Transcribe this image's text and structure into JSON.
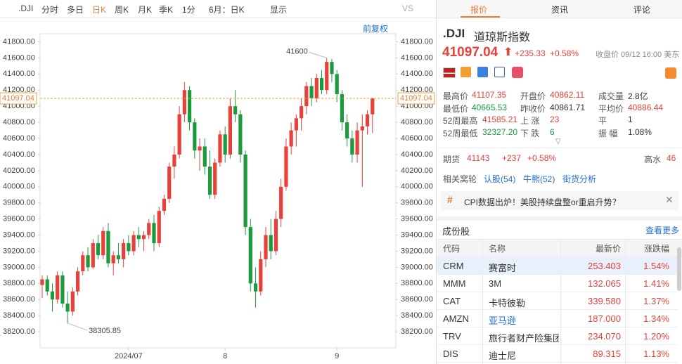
{
  "toolbar": {
    "symbol": ".DJI",
    "items": [
      "分时",
      "多日",
      "日K",
      "周K",
      "月K",
      "季K",
      "1分",
      "6月：日K",
      "显示",
      "VS"
    ],
    "adjust": "前复权"
  },
  "chart_data": {
    "type": "candlestick",
    "categories": [
      null,
      null,
      null,
      null,
      null,
      null,
      null,
      null,
      null,
      null,
      null,
      null,
      null,
      null,
      null,
      null,
      null,
      "2024/07",
      null,
      null,
      null,
      null,
      null,
      null,
      null,
      null,
      null,
      null,
      null,
      null,
      null,
      null,
      null,
      null,
      null,
      null,
      "8",
      null,
      null,
      null,
      null,
      null,
      null,
      null,
      null,
      null,
      null,
      null,
      null,
      null,
      null,
      null,
      null,
      null,
      null,
      null,
      null,
      null,
      "9",
      null,
      null,
      null,
      null,
      null,
      null,
      null,
      null
    ],
    "series": [
      {
        "open": [
          38780,
          38850,
          38700,
          38600,
          38900,
          38550,
          38450,
          38700,
          38950,
          39150,
          39000,
          39300,
          39150,
          39450,
          39050,
          39150,
          39100,
          39300,
          39200,
          39400,
          39350,
          39400,
          39550,
          39300,
          39700,
          39850,
          40250,
          40400,
          40900,
          41200,
          40800,
          40450,
          40500,
          40250,
          39900,
          40300,
          40650,
          40400,
          41000,
          40900,
          40400,
          39500,
          38800,
          38700,
          39100,
          39400,
          39200,
          39600,
          40000,
          40500,
          40700,
          40850,
          41000,
          41250,
          41100,
          41350,
          41200,
          41550,
          41400,
          41150,
          40800,
          40600,
          40400,
          40700,
          40750,
          40900
        ],
        "high": [
          38900,
          38900,
          38800,
          38950,
          38950,
          38700,
          38750,
          39000,
          39200,
          39250,
          39350,
          39400,
          39500,
          39550,
          39200,
          39300,
          39350,
          39400,
          39450,
          39500,
          39450,
          39600,
          39650,
          39750,
          39900,
          40300,
          40500,
          41000,
          41300,
          41250,
          40850,
          40600,
          40600,
          40450,
          40350,
          40700,
          40750,
          41100,
          41200,
          40950,
          40450,
          39600,
          39000,
          39200,
          39500,
          39600,
          39700,
          40100,
          40600,
          40800,
          40900,
          41100,
          41300,
          41350,
          41400,
          41450,
          41600,
          41585.21,
          41450,
          41200,
          40900,
          40700,
          40800,
          40900,
          40950,
          41107.35
        ],
        "low": [
          38620,
          38650,
          38450,
          38550,
          38500,
          38305.85,
          38400,
          38650,
          38900,
          38950,
          38980,
          39100,
          39100,
          39000,
          38900,
          39050,
          39000,
          39150,
          39150,
          39250,
          39200,
          39350,
          39200,
          39250,
          39650,
          39800,
          40100,
          40350,
          40800,
          40700,
          40350,
          40200,
          40150,
          39850,
          39850,
          40250,
          40300,
          40350,
          40800,
          40300,
          39400,
          38700,
          38500,
          38650,
          39000,
          39100,
          39150,
          39500,
          39950,
          40400,
          40500,
          40700,
          40900,
          41000,
          41050,
          41150,
          41150,
          41300,
          41050,
          40700,
          40500,
          40300,
          40300,
          40000,
          40650,
          40665.53
        ],
        "close": [
          38850,
          38700,
          38600,
          38900,
          38550,
          38450,
          38700,
          38950,
          39150,
          39000,
          39300,
          39150,
          39450,
          39050,
          39150,
          39100,
          39300,
          39200,
          39400,
          39350,
          39400,
          39550,
          39300,
          39700,
          39850,
          40250,
          40400,
          40900,
          41200,
          40800,
          40450,
          40500,
          40250,
          39900,
          40300,
          40650,
          40400,
          41000,
          40900,
          40400,
          39500,
          38800,
          38700,
          39100,
          39400,
          39200,
          39600,
          40000,
          40500,
          40700,
          40850,
          41000,
          41250,
          41100,
          41350,
          41200,
          41550,
          41400,
          41150,
          40800,
          40600,
          40400,
          40700,
          40750,
          40900,
          41097.04
        ]
      }
    ],
    "up_color": "#e8403a",
    "down_color": "#1d9a3c",
    "last_price": 41097.04,
    "ylim": [
      38000,
      41900
    ],
    "yticks": [
      {
        "value": 38200,
        "label": "38200.00"
      },
      {
        "value": 38400,
        "label": "38400.00"
      },
      {
        "value": 38600,
        "label": "38600.00"
      },
      {
        "value": 38800,
        "label": "38800.00"
      },
      {
        "value": 39000,
        "label": "39000.00"
      },
      {
        "value": 39200,
        "label": "39200.00"
      },
      {
        "value": 39400,
        "label": "39400.00"
      },
      {
        "value": 39600,
        "label": "39600.00"
      },
      {
        "value": 39800,
        "label": "39800.00"
      },
      {
        "value": 40000,
        "label": "40000.00"
      },
      {
        "value": 40200,
        "label": "40200.00"
      },
      {
        "value": 40400,
        "label": "40400.00"
      },
      {
        "value": 40600,
        "label": "40600.00"
      },
      {
        "value": 40800,
        "label": "40800.00"
      },
      {
        "value": 41000,
        "label": "41000.00"
      },
      {
        "value": 41200,
        "label": "41200.00"
      },
      {
        "value": 41400,
        "label": "41400.00"
      },
      {
        "value": 41600,
        "label": "41600.00"
      },
      {
        "value": 41800,
        "label": "41800.00"
      }
    ],
    "grid": false
  },
  "tabs": [
    "报价",
    "资讯",
    "评论"
  ],
  "quote": {
    "symbol": ".DJI",
    "name": "道琼斯指数",
    "price": "41097.04",
    "change": "+235.33",
    "pct": "+0.58%",
    "status": "收盘价 09/12 16:00 美东"
  },
  "stats": [
    [
      [
        "最高价",
        "41107.35"
      ],
      [
        "开盘价",
        "40862.11"
      ],
      [
        "成交量",
        "2.8亿"
      ]
    ],
    [
      [
        "最低价",
        "40665.53"
      ],
      [
        "昨收价",
        "40861.71"
      ],
      [
        "平均价",
        "40886.44"
      ]
    ],
    [
      [
        "52周最高",
        "41585.21"
      ],
      [
        "上 涨",
        "23"
      ],
      [
        "平",
        "1"
      ]
    ],
    [
      [
        "52周最低",
        "32327.20"
      ],
      [
        "下 跌",
        "6"
      ],
      [
        "振 幅",
        "1.08%"
      ]
    ]
  ],
  "futures": {
    "label": "期货",
    "price": "41143",
    "change": "+237",
    "pct": "+0.58%",
    "premium_label": "高水",
    "premium": "46"
  },
  "related": {
    "label": "相关窝轮",
    "links": [
      "认股(54)",
      "牛熊(52)",
      "街货分析"
    ]
  },
  "news": "CPI数据出炉！美股持续盘整or重启升势？",
  "constituents": {
    "title": "成份股",
    "more": "查看更多",
    "headers": [
      "代码",
      "名称",
      "最新价",
      "涨跌幅"
    ],
    "rows": [
      [
        "CRM",
        "赛富时",
        "253.403",
        "1.54%"
      ],
      [
        "MMM",
        "3M",
        "132.065",
        "1.41%"
      ],
      [
        "CAT",
        "卡特彼勒",
        "339.580",
        "1.37%"
      ],
      [
        "AMZN",
        "亚马逊",
        "187.000",
        "1.34%"
      ],
      [
        "TRV",
        "旅行者财产险集团",
        "234.070",
        "1.20%"
      ],
      [
        "DIS",
        "迪士尼",
        "89.315",
        "1.13%"
      ]
    ]
  }
}
